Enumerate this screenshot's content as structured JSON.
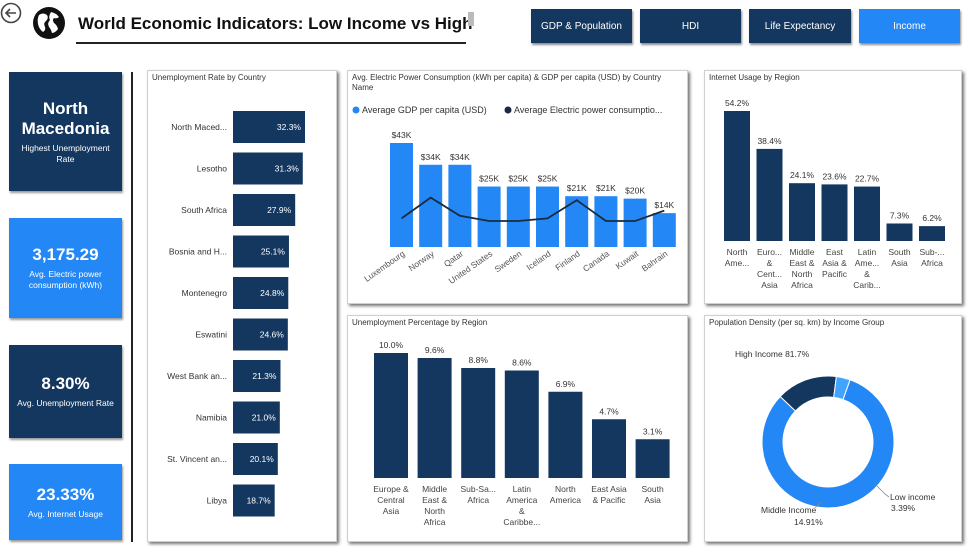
{
  "header": {
    "title": "World Economic Indicators: Low Income vs High",
    "nav": [
      "GDP & Population",
      "HDI",
      "Life Expectancy",
      "Income"
    ],
    "active_nav": "Income"
  },
  "kpis": [
    {
      "value": "North Macedonia",
      "label": "Highest Unemployment Rate"
    },
    {
      "value": "3,175.29",
      "label": "Avg. Electric power consumption (kWh)"
    },
    {
      "value": "8.30%",
      "label": "Avg. Unemployment Rate"
    },
    {
      "value": "23.33%",
      "label": "Avg. Internet Usage"
    }
  ],
  "colors": {
    "dark": "#14375f",
    "blue": "#2388f5",
    "line": "#1a2a40"
  },
  "chart_data": [
    {
      "id": "unemp_country",
      "type": "bar",
      "orientation": "horizontal",
      "title": "Unemployment Rate by Country",
      "categories": [
        "North Maced...",
        "Lesotho",
        "South Africa",
        "Bosnia and H...",
        "Montenegro",
        "Eswatini",
        "West Bank an...",
        "Namibia",
        "St. Vincent an...",
        "Libya"
      ],
      "values": [
        32.3,
        31.3,
        27.9,
        25.1,
        24.8,
        24.6,
        21.3,
        21.0,
        20.1,
        18.7
      ],
      "labels": [
        "32.3%",
        "31.3%",
        "27.9%",
        "25.1%",
        "24.8%",
        "24.6%",
        "21.3%",
        "21.0%",
        "20.1%",
        "18.7%"
      ]
    },
    {
      "id": "power_gdp",
      "type": "bar",
      "title": "Avg. Electric Power Consumption (kWh per capita) & GDP per capita (USD) by Country Name",
      "legend": [
        "Average GDP per capita (USD)",
        "Average Electric power consumptio..."
      ],
      "categories": [
        "Luxembourg",
        "Norway",
        "Qatar",
        "United States",
        "Sweden",
        "Iceland",
        "Finland",
        "Canada",
        "Kuwait",
        "Bahrain"
      ],
      "series": [
        {
          "name": "Average GDP per capita (USD)",
          "values": [
            43,
            34,
            34,
            25,
            25,
            25,
            21,
            21,
            20,
            14
          ],
          "labels": [
            "$43K",
            "$34K",
            "$34K",
            "$25K",
            "$25K",
            "$25K",
            "$21K",
            "$21K",
            "$20K",
            "$14K"
          ]
        },
        {
          "name": "Average Electric power consumptio...",
          "values": [
            11,
            19,
            12,
            10,
            10,
            11,
            18,
            10,
            10,
            14
          ]
        }
      ]
    },
    {
      "id": "internet_region",
      "type": "bar",
      "title": "Internet Usage by Region",
      "categories": [
        [
          "North",
          "Ame..."
        ],
        [
          "Euro...",
          "&",
          "Cent...",
          "Asia"
        ],
        [
          "Middle",
          "East &",
          "North",
          "Africa"
        ],
        [
          "East",
          "Asia &",
          "Pacific"
        ],
        [
          "Latin",
          "Ame...",
          "&",
          "Carib..."
        ],
        [
          "South",
          "Asia"
        ],
        [
          "Sub-...",
          "Africa"
        ]
      ],
      "values": [
        54.2,
        38.4,
        24.1,
        23.6,
        22.7,
        7.3,
        6.2
      ],
      "labels": [
        "54.2%",
        "38.4%",
        "24.1%",
        "23.6%",
        "22.7%",
        "7.3%",
        "6.2%"
      ]
    },
    {
      "id": "unemp_region",
      "type": "bar",
      "title": "Unemployment Percentage by Region",
      "categories": [
        [
          "Europe &",
          "Central",
          "Asia"
        ],
        [
          "Middle",
          "East &",
          "North",
          "Africa"
        ],
        [
          "Sub-Sa...",
          "Africa"
        ],
        [
          "Latin",
          "America",
          "&",
          "Caribbe..."
        ],
        [
          "North",
          "America"
        ],
        [
          "East Asia",
          "& Pacific"
        ],
        [
          "South",
          "Asia"
        ]
      ],
      "values": [
        10.0,
        9.6,
        8.8,
        8.6,
        6.9,
        4.7,
        3.1
      ],
      "labels": [
        "10.0%",
        "9.6%",
        "8.8%",
        "8.6%",
        "6.9%",
        "4.7%",
        "3.1%"
      ]
    },
    {
      "id": "pop_density",
      "type": "pie",
      "title": "Population Density (per sq. km) by Income Group",
      "slices": [
        {
          "name": "High Income",
          "value": 81.7,
          "label": "High Income 81.7%"
        },
        {
          "name": "Middle Income",
          "value": 14.91,
          "label": "14.91%"
        },
        {
          "name": "Low income",
          "value": 3.39,
          "label": "3.39%"
        }
      ]
    }
  ]
}
